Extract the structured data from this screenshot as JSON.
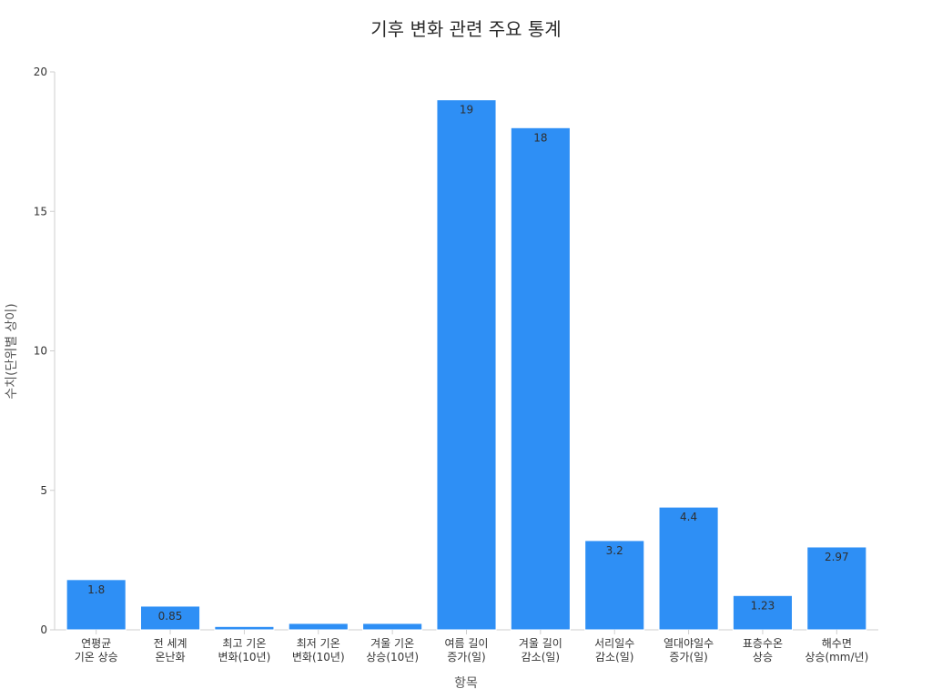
{
  "chart_data": {
    "type": "bar",
    "title": "기후 변화 관련 주요 통계",
    "xlabel": "항목",
    "ylabel": "수치(단위별 상이)",
    "ylim": [
      0,
      20
    ],
    "yticks": [
      0,
      5,
      10,
      15,
      20
    ],
    "grid": false,
    "legend": "none",
    "bar_color": "#2e8ff5",
    "categories": [
      [
        "연평균",
        "기온 상승"
      ],
      [
        "전 세계",
        "온난화"
      ],
      [
        "최고 기온",
        "변화(10년)"
      ],
      [
        "최저 기온",
        "변화(10년)"
      ],
      [
        "겨울 기온",
        "상승(10년)"
      ],
      [
        "여름 길이",
        "증가(일)"
      ],
      [
        "겨울 길이",
        "감소(일)"
      ],
      [
        "서리일수",
        "감소(일)"
      ],
      [
        "열대야일수",
        "증가(일)"
      ],
      [
        "표층수온",
        "상승"
      ],
      [
        "해수면",
        "상승(mm/년)"
      ]
    ],
    "values": [
      1.8,
      0.85,
      0.12,
      0.23,
      0.23,
      19,
      18,
      3.2,
      4.4,
      1.23,
      2.97
    ],
    "data_labels": [
      "1.8",
      "0.85",
      "",
      "",
      "",
      "19",
      "18",
      "3.2",
      "4.4",
      "1.23",
      "2.97"
    ]
  }
}
